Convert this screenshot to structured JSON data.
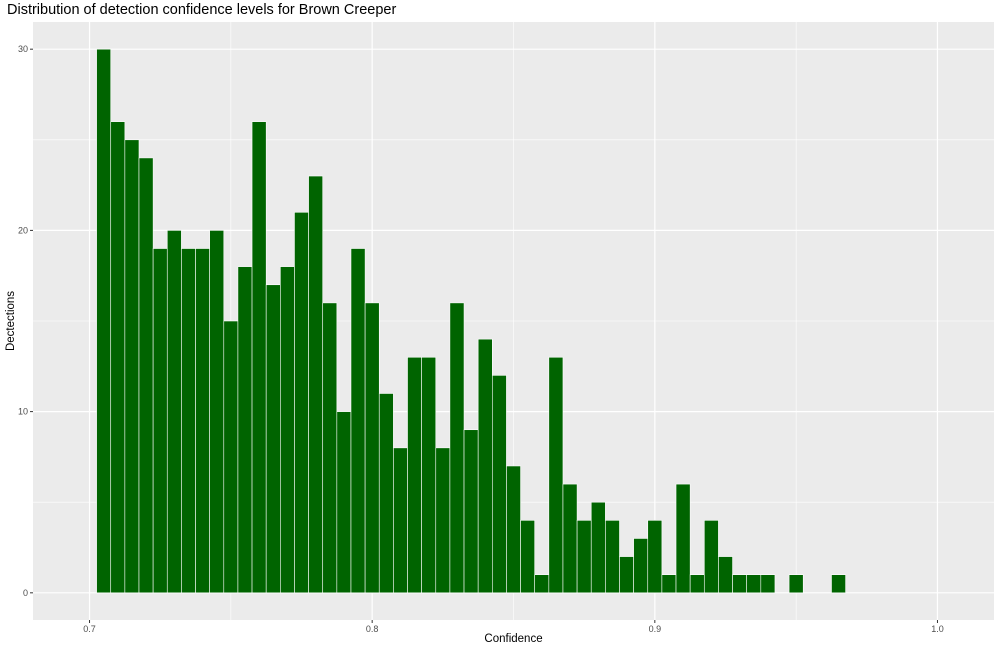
{
  "chart_data": {
    "type": "bar",
    "title": "Distribution of detection confidence levels for Brown Creeper",
    "xlabel": "Confidence",
    "ylabel": "Dectections",
    "xlim": [
      0.68,
      1.02
    ],
    "ylim": [
      -1.5,
      31.5
    ],
    "x_ticks": [
      0.7,
      0.8,
      0.9,
      1.0
    ],
    "x_tick_labels": [
      "0.7",
      "0.8",
      "0.9",
      "1.0"
    ],
    "y_ticks": [
      0,
      10,
      20,
      30
    ],
    "y_tick_labels": [
      "0",
      "10",
      "20",
      "30"
    ],
    "bin_width": 0.005,
    "bin_start": 0.7025,
    "values": [
      30,
      26,
      25,
      24,
      19,
      20,
      19,
      19,
      20,
      15,
      18,
      26,
      17,
      18,
      21,
      23,
      16,
      10,
      19,
      16,
      11,
      8,
      13,
      13,
      8,
      16,
      9,
      14,
      12,
      7,
      4,
      1,
      13,
      6,
      4,
      5,
      4,
      2,
      3,
      4,
      1,
      6,
      1,
      4,
      2,
      1,
      1,
      1,
      0,
      1,
      0,
      0,
      1
    ],
    "bar_color": "#006400",
    "panel_color": "#ebebeb",
    "grid": true,
    "legend": "none"
  }
}
